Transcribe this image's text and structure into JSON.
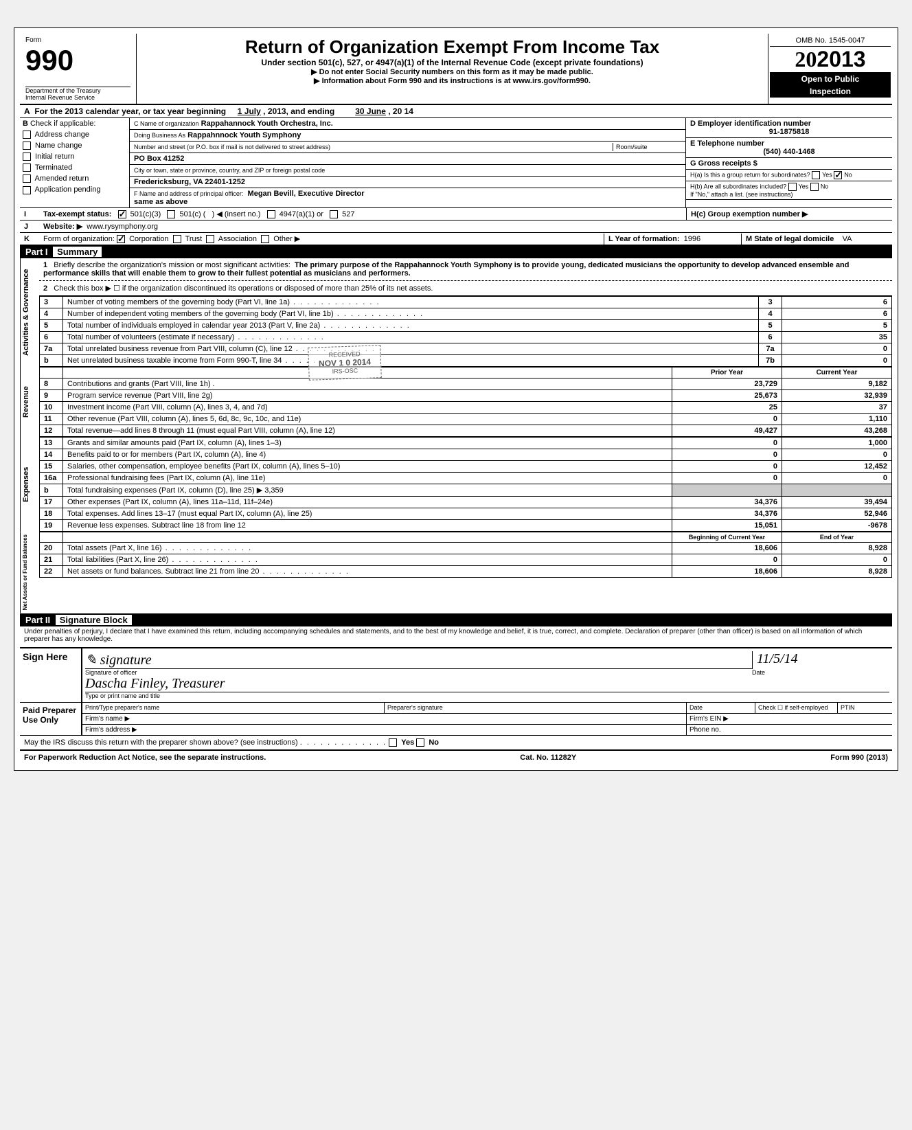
{
  "form": {
    "form_label": "Form",
    "form_number": "990",
    "dept": "Department of the Treasury",
    "irs": "Internal Revenue Service",
    "title": "Return of Organization Exempt From Income Tax",
    "subtitle": "Under section 501(c), 527, or 4947(a)(1) of the Internal Revenue Code (except private foundations)",
    "note1": "▶ Do not enter Social Security numbers on this form as it may be made public.",
    "note2": "▶ Information about Form 990 and its instructions is at www.irs.gov/form990.",
    "omb": "OMB No. 1545-0047",
    "year": "2013",
    "open": "Open to Public",
    "inspection": "Inspection"
  },
  "lineA": {
    "prefix": "A",
    "text": "For the 2013 calendar year, or tax year beginning",
    "begin": "1 July",
    "mid": ", 2013, and ending",
    "end_month": "30 June",
    "end_year": ", 20  14"
  },
  "lineB": {
    "prefix": "B",
    "label": "Check if applicable:",
    "opts": [
      "Address change",
      "Name change",
      "Initial return",
      "Terminated",
      "Amended return",
      "Application pending"
    ]
  },
  "lineC": {
    "name_lbl": "C Name of organization",
    "name": "Rappahannock Youth Orchestra, Inc.",
    "dba_lbl": "Doing Business As",
    "dba": "Rappahnnock Youth Symphony",
    "street_lbl": "Number and street (or P.O. box if mail is not delivered to street address)",
    "room_lbl": "Room/suite",
    "street": "PO Box 41252",
    "city_lbl": "City or town, state or province, country, and ZIP or foreign postal code",
    "city": "Fredericksburg, VA 22401-1252",
    "officer_lbl": "F Name and address of principal officer:",
    "officer": "Megan Bevill, Executive Director",
    "officer_addr": "same as above"
  },
  "lineD": {
    "lbl": "D Employer identification number",
    "val": "91-1875818"
  },
  "lineE": {
    "lbl": "E Telephone number",
    "val": "(540) 440-1468"
  },
  "lineG": {
    "lbl": "G Gross receipts $",
    "val": ""
  },
  "lineH": {
    "ha": "H(a) Is this a group return for subordinates?",
    "hb": "H(b) Are all subordinates included?",
    "hb2": "If \"No,\" attach a list. (see instructions)",
    "hc": "H(c) Group exemption number ▶",
    "yes": "Yes",
    "no": "No"
  },
  "lineI": {
    "prefix": "I",
    "label": "Tax-exempt status:",
    "o1": "501(c)(3)",
    "o2": "501(c) (",
    "o2b": ") ◀ (insert no.)",
    "o3": "4947(a)(1) or",
    "o4": "527"
  },
  "lineJ": {
    "prefix": "J",
    "label": "Website: ▶",
    "val": "www.rysymphony.org"
  },
  "lineK": {
    "prefix": "K",
    "label": "Form of organization:",
    "o1": "Corporation",
    "o2": "Trust",
    "o3": "Association",
    "o4": "Other ▶",
    "yof_lbl": "L Year of formation:",
    "yof": "1996",
    "dom_lbl": "M State of legal domicile",
    "dom": "VA"
  },
  "partI": {
    "hdr": "Part I",
    "title": "Summary"
  },
  "summary": {
    "side_gov": "Activities & Governance",
    "side_rev": "Revenue",
    "side_exp": "Expenses",
    "side_net": "Net Assets or\nFund Balances",
    "l1_num": "1",
    "l1": "Briefly describe the organization's mission or most significant activities:",
    "l1_val": "The primary purpose of the Rappahannock Youth Symphony is to provide young, dedicated musicians the opportunity to develop advanced ensemble and performance skills that will enable them to grow to their fullest potential as musicians and performers.",
    "l2_num": "2",
    "l2": "Check this box ▶ ☐ if the organization discontinued its operations or disposed of more than 25% of its net assets.",
    "rows_gov": [
      {
        "n": "3",
        "d": "Number of voting members of the governing body (Part VI, line 1a)",
        "box": "3",
        "v": "6"
      },
      {
        "n": "4",
        "d": "Number of independent voting members of the governing body (Part VI, line 1b)",
        "box": "4",
        "v": "6"
      },
      {
        "n": "5",
        "d": "Total number of individuals employed in calendar year 2013 (Part V, line 2a)",
        "box": "5",
        "v": "5"
      },
      {
        "n": "6",
        "d": "Total number of volunteers (estimate if necessary)",
        "box": "6",
        "v": "35"
      },
      {
        "n": "7a",
        "d": "Total unrelated business revenue from Part VIII, column (C), line 12",
        "box": "7a",
        "v": "0"
      },
      {
        "n": "b",
        "d": "Net unrelated business taxable income from Form 990-T, line 34",
        "box": "7b",
        "v": "0"
      }
    ],
    "hdr_prior": "Prior Year",
    "hdr_current": "Current Year",
    "rows_rev": [
      {
        "n": "8",
        "d": "Contributions and grants (Part VIII, line 1h) .",
        "p": "23,729",
        "c": "9,182"
      },
      {
        "n": "9",
        "d": "Program service revenue (Part VIII, line 2g)",
        "p": "25,673",
        "c": "32,939"
      },
      {
        "n": "10",
        "d": "Investment income (Part VIII, column (A), lines 3, 4, and 7d)",
        "p": "25",
        "c": "37"
      },
      {
        "n": "11",
        "d": "Other revenue (Part VIII, column (A), lines 5, 6d, 8c, 9c, 10c, and 11e)",
        "p": "0",
        "c": "1,110"
      },
      {
        "n": "12",
        "d": "Total revenue—add lines 8 through 11 (must equal Part VIII, column (A), line 12)",
        "p": "49,427",
        "c": "43,268"
      }
    ],
    "rows_exp": [
      {
        "n": "13",
        "d": "Grants and similar amounts paid (Part IX, column (A), lines 1–3)",
        "p": "0",
        "c": "1,000"
      },
      {
        "n": "14",
        "d": "Benefits paid to or for members (Part IX, column (A), line 4)",
        "p": "0",
        "c": "0"
      },
      {
        "n": "15",
        "d": "Salaries, other compensation, employee benefits (Part IX, column (A), lines 5–10)",
        "p": "0",
        "c": "12,452"
      },
      {
        "n": "16a",
        "d": "Professional fundraising fees (Part IX, column (A), line 11e)",
        "p": "0",
        "c": "0"
      },
      {
        "n": "b",
        "d": "Total fundraising expenses (Part IX, column (D), line 25) ▶         3,359",
        "p": "",
        "c": ""
      },
      {
        "n": "17",
        "d": "Other expenses (Part IX, column (A), lines 11a–11d, 11f–24e)",
        "p": "34,376",
        "c": "39,494"
      },
      {
        "n": "18",
        "d": "Total expenses. Add lines 13–17 (must equal Part IX, column (A), line 25)",
        "p": "34,376",
        "c": "52,946"
      },
      {
        "n": "19",
        "d": "Revenue less expenses. Subtract line 18 from line 12",
        "p": "15,051",
        "c": "-9678"
      }
    ],
    "hdr_begin": "Beginning of Current Year",
    "hdr_end": "End of Year",
    "rows_net": [
      {
        "n": "20",
        "d": "Total assets (Part X, line 16)",
        "p": "18,606",
        "c": "8,928"
      },
      {
        "n": "21",
        "d": "Total liabilities (Part X, line 26)",
        "p": "0",
        "c": "0"
      },
      {
        "n": "22",
        "d": "Net assets or fund balances. Subtract line 21 from line 20",
        "p": "18,606",
        "c": "8,928"
      }
    ]
  },
  "stamp": {
    "l1": "RECEIVED",
    "l2": "NOV 1 0 2014",
    "l3": "IRS-OSC"
  },
  "partII": {
    "hdr": "Part II",
    "title": "Signature Block"
  },
  "sig": {
    "decl": "Under penalties of perjury, I declare that I have examined this return, including accompanying schedules and statements, and to the best of my knowledge and belief, it is true, correct, and complete. Declaration of preparer (other than officer) is based on all information of which preparer has any knowledge.",
    "sign_here": "Sign Here",
    "sig_lbl": "Signature of officer",
    "date_lbl": "Date",
    "date_val": "11/5/14",
    "name_lbl": "Type or print name and title",
    "name_val": "Dascha Finley,   Treasurer",
    "paid": "Paid Preparer Use Only",
    "prep_name_lbl": "Print/Type preparer's name",
    "prep_sig_lbl": "Preparer's signature",
    "prep_date_lbl": "Date",
    "prep_chk": "Check ☐ if self-employed",
    "ptin": "PTIN",
    "firm_name": "Firm's name ▶",
    "firm_ein": "Firm's EIN ▶",
    "firm_addr": "Firm's address ▶",
    "phone": "Phone no.",
    "discuss": "May the IRS discuss this return with the preparer shown above? (see instructions)",
    "yes": "Yes",
    "no": "No"
  },
  "footer": {
    "left": "For Paperwork Reduction Act Notice, see the separate instructions.",
    "mid": "Cat. No. 11282Y",
    "right": "Form 990 (2013)"
  },
  "colors": {
    "black": "#000000",
    "white": "#ffffff",
    "gray": "#f0f0f0"
  }
}
